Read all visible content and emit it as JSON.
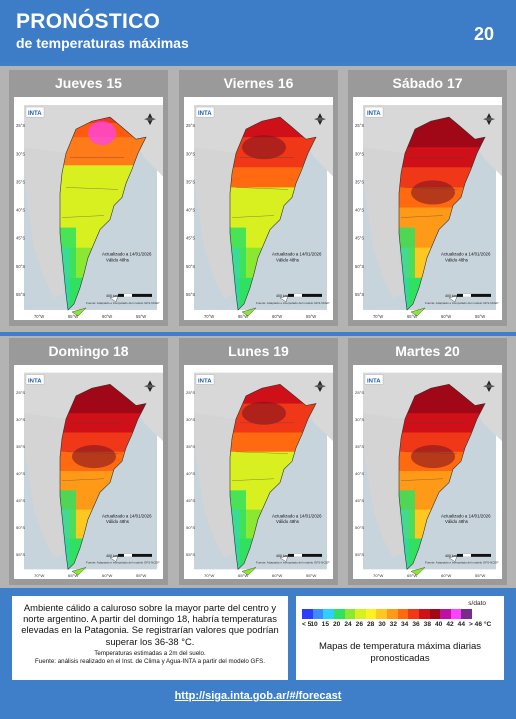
{
  "header": {
    "title": "PRONÓSTICO",
    "subtitle": "de temperaturas máximas",
    "page_number": "20"
  },
  "map_text": {
    "logo": "INTA",
    "updated": "Actualizado a 14/01/2026",
    "valid": "Válido 48hs",
    "scale": "400 km",
    "source": "Fuente: Adaptado e interpolado del modelo GFS-NCEP",
    "lat_labels": [
      "25°S",
      "30°S",
      "35°S",
      "40°S",
      "45°S",
      "50°S",
      "55°S"
    ],
    "lon_labels": [
      "70°W",
      "65°W",
      "60°W",
      "55°W"
    ]
  },
  "maps": [
    {
      "day": "Jueves 15",
      "intensity": 1
    },
    {
      "day": "Viernes 16",
      "intensity": 2
    },
    {
      "day": "Sábado 17",
      "intensity": 3
    },
    {
      "day": "Domingo 18",
      "intensity": 3
    },
    {
      "day": "Lunes 19",
      "intensity": 2
    },
    {
      "day": "Martes 20",
      "intensity": 3
    }
  ],
  "info": {
    "text": "Ambiente cálido a caluroso sobre la mayor parte del centro y norte argentino. A partir del domingo 18, habría temperaturas elevadas en la Patagonia. Se registrarían valores que podrían superar los 36-38 °C.",
    "note": "Temperaturas estimadas a 2m del suelo.",
    "source": "Fuente: análisis realizado en el Inst. de Clima y Agua-INTA a partir del modelo GFS."
  },
  "legend": {
    "no_data": "s/dato",
    "colors": [
      "#2e3cff",
      "#3a8cff",
      "#2ed0ff",
      "#30e060",
      "#8be830",
      "#d8f020",
      "#fff020",
      "#ffc820",
      "#ff9a18",
      "#ff6a10",
      "#f03818",
      "#d01018",
      "#a00818",
      "#c010a0",
      "#ff40ff",
      "#7a2a8a"
    ],
    "ticks": [
      "< 5",
      "10",
      "15",
      "20",
      "24",
      "26",
      "28",
      "30",
      "32",
      "34",
      "36",
      "38",
      "40",
      "42",
      "44",
      "> 46 °C"
    ],
    "caption": "Mapas de temperatura máxima diarias pronosticadas"
  },
  "footer": {
    "url": "http://siga.inta.gob.ar/#/forecast"
  }
}
